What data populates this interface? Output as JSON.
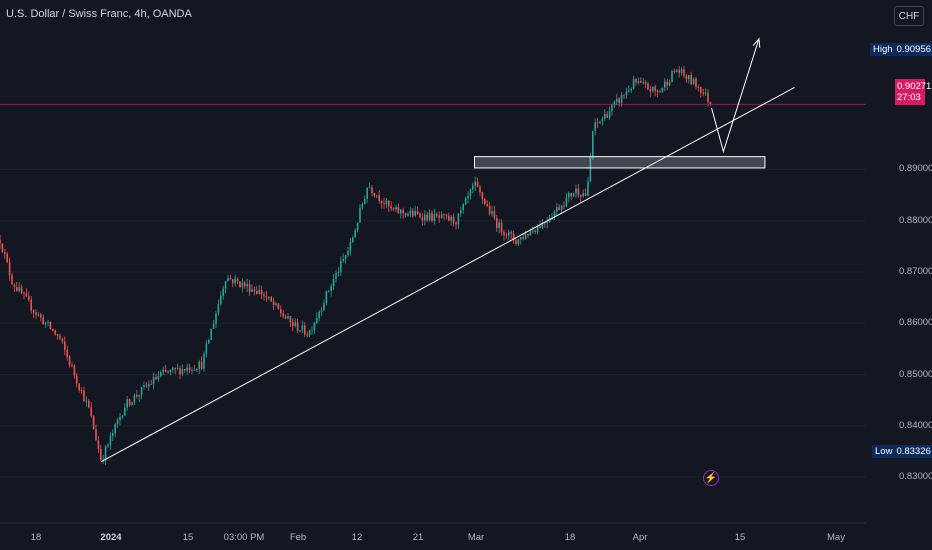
{
  "symbol_title": "U.S. Dollar / Swiss Franc, 4h, OANDA",
  "currency_button": "CHF",
  "high_label": {
    "label": "High",
    "value": "0.90956"
  },
  "low_label": {
    "label": "Low",
    "value": "0.83326"
  },
  "last_price": {
    "value": "0.90271",
    "countdown": "27:03"
  },
  "icons": {
    "alert": "lightning-bolt-icon"
  },
  "colors": {
    "background": "#131722",
    "bull": "#26a69a",
    "bear": "#ef5350",
    "last_price": "#d81b60",
    "high_low_tag": "#0d2a5c",
    "drawing": "#ffffff"
  },
  "chart_data": {
    "type": "candlestick",
    "ylim": [
      0.8265,
      0.9215
    ],
    "y_ticks": [
      "0.89000",
      "0.88000",
      "0.87000",
      "0.86000",
      "0.85000",
      "0.84000",
      "0.83000"
    ],
    "x_ticks": [
      "18",
      "2024",
      "15",
      "03:00 PM",
      "Feb",
      "12",
      "21",
      "Mar",
      "18",
      "Apr",
      "15",
      "May"
    ],
    "price_path": [
      [
        "2023-12-11",
        0.88
      ],
      [
        "2023-12-14",
        0.868
      ],
      [
        "2023-12-18",
        0.862
      ],
      [
        "2023-12-22",
        0.857
      ],
      [
        "2023-12-27",
        0.843
      ],
      [
        "2023-12-29",
        0.8333
      ],
      [
        "2024-01-02",
        0.844
      ],
      [
        "2024-01-08",
        0.85
      ],
      [
        "2024-01-15",
        0.852
      ],
      [
        "2024-01-19",
        0.869
      ],
      [
        "2024-01-25",
        0.866
      ],
      [
        "2024-01-30",
        0.86
      ],
      [
        "2024-02-02",
        0.858
      ],
      [
        "2024-02-06",
        0.868
      ],
      [
        "2024-02-09",
        0.875
      ],
      [
        "2024-02-12",
        0.887
      ],
      [
        "2024-02-16",
        0.882
      ],
      [
        "2024-02-21",
        0.881
      ],
      [
        "2024-02-27",
        0.88
      ],
      [
        "2024-03-01",
        0.887
      ],
      [
        "2024-03-05",
        0.879
      ],
      [
        "2024-03-08",
        0.876
      ],
      [
        "2024-03-13",
        0.88
      ],
      [
        "2024-03-18",
        0.886
      ],
      [
        "2024-03-20",
        0.885
      ],
      [
        "2024-03-21",
        0.898
      ],
      [
        "2024-03-25",
        0.903
      ],
      [
        "2024-03-28",
        0.907
      ],
      [
        "2024-04-01",
        0.905
      ],
      [
        "2024-04-04",
        0.9095
      ],
      [
        "2024-04-08",
        0.906
      ],
      [
        "2024-04-10",
        0.9027
      ]
    ],
    "trendline": {
      "start": [
        "2023-12-29",
        0.833
      ],
      "end": [
        "2024-04-24",
        0.906
      ]
    },
    "zone": {
      "x": [
        "2024-03-01",
        "2024-04-19"
      ],
      "y": [
        0.8903,
        0.8925
      ]
    },
    "projection": [
      [
        "2024-04-10",
        0.902
      ],
      [
        "2024-04-12",
        0.8935
      ],
      [
        "2024-04-18",
        0.9155
      ]
    ],
    "last_price_line": 0.90271,
    "high": 0.90956,
    "low": 0.83326
  }
}
